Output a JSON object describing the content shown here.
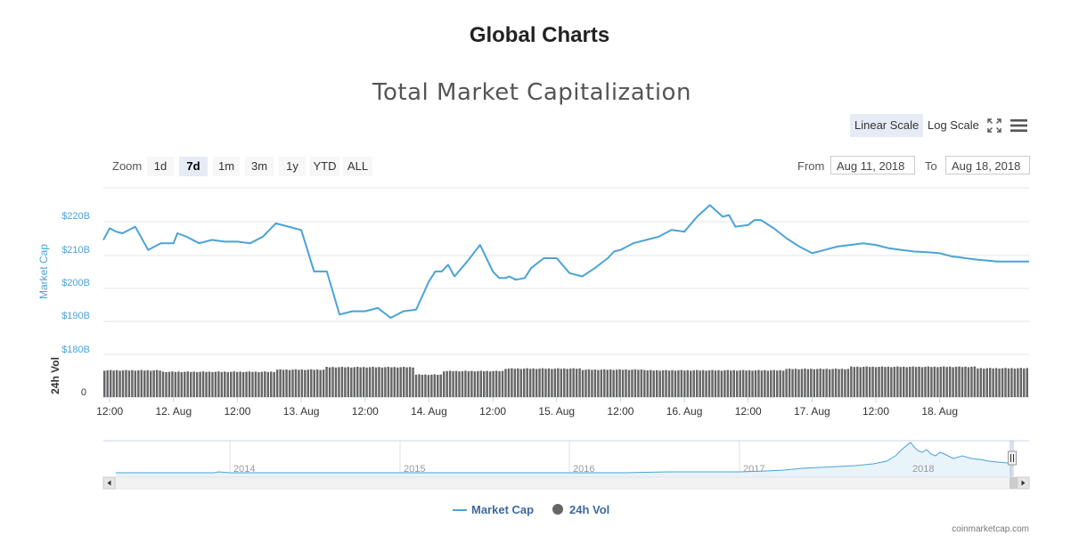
{
  "page": {
    "title": "Global Charts",
    "credit": "coinmarketcap.com"
  },
  "toolbar": {
    "linear_scale": "Linear Scale",
    "log_scale": "Log Scale",
    "zoom_label": "Zoom",
    "zoom_buttons": [
      "1d",
      "7d",
      "1m",
      "3m",
      "1y",
      "YTD",
      "ALL"
    ],
    "zoom_active": "7d",
    "from_label": "From",
    "from_value": "Aug 11, 2018",
    "to_label": "To",
    "to_value": "Aug 18, 2018"
  },
  "legend": {
    "market_cap": "Market Cap",
    "vol": "24h Vol"
  },
  "colors": {
    "market_cap": "#4ba3d6",
    "vol": "#666666",
    "navigator_fill": "#e8f3fa"
  },
  "chart_data": {
    "type": "line",
    "title": "Total Market Capitalization",
    "ylabel": "Market Cap",
    "ylim": [
      180,
      230
    ],
    "y_ticks": [
      "$220B",
      "$210B",
      "$200B",
      "$190B",
      "$180B"
    ],
    "x_tick_labels": [
      "12:00",
      "12. Aug",
      "12:00",
      "13. Aug",
      "12:00",
      "14. Aug",
      "12:00",
      "15. Aug",
      "12:00",
      "16. Aug",
      "12:00",
      "17. Aug",
      "12:00",
      "18. Aug"
    ],
    "x_range_days": [
      0.45,
      7.7
    ],
    "series": [
      {
        "name": "Market Cap",
        "unit": "B USD",
        "x_days": [
          0.45,
          0.5,
          0.55,
          0.6,
          0.7,
          0.8,
          0.9,
          1.0,
          1.03,
          1.1,
          1.2,
          1.3,
          1.4,
          1.5,
          1.6,
          1.7,
          1.8,
          1.9,
          2.0,
          2.1,
          2.2,
          2.3,
          2.4,
          2.5,
          2.6,
          2.7,
          2.8,
          2.9,
          3.0,
          3.05,
          3.1,
          3.15,
          3.2,
          3.3,
          3.4,
          3.5,
          3.55,
          3.6,
          3.63,
          3.68,
          3.75,
          3.8,
          3.9,
          4.0,
          4.1,
          4.2,
          4.3,
          4.4,
          4.45,
          4.5,
          4.6,
          4.7,
          4.8,
          4.9,
          5.0,
          5.1,
          5.2,
          5.3,
          5.35,
          5.4,
          5.5,
          5.55,
          5.6,
          5.7,
          5.8,
          5.9,
          6.0,
          6.1,
          6.2,
          6.3,
          6.4,
          6.5,
          6.6,
          6.7,
          6.8,
          6.9,
          7.0,
          7.05,
          7.1,
          7.15,
          7.2,
          7.3,
          7.4,
          7.45,
          7.5,
          7.55,
          7.6,
          7.65,
          7.7
        ],
        "values": [
          214.5,
          218,
          217,
          216.5,
          218.5,
          211.5,
          213.5,
          213.5,
          216.5,
          215.5,
          213.5,
          214.5,
          214,
          214,
          213.5,
          215.5,
          219.5,
          218.5,
          217.5,
          205,
          205,
          192,
          193,
          193,
          194,
          191,
          193,
          193.5,
          202,
          205,
          205,
          207,
          203.5,
          208,
          213,
          205,
          203,
          203,
          203.5,
          202.5,
          203,
          206,
          209,
          209,
          204.5,
          203.5,
          206,
          209,
          211,
          211.5,
          213.5,
          214.5,
          215.5,
          217.5,
          217,
          221.5,
          225,
          221.5,
          222,
          218.5,
          219,
          220.5,
          220.5,
          218,
          215,
          212.5,
          210.5,
          211.5,
          212.5,
          213,
          213.5,
          213,
          212,
          211.5,
          211,
          210.8,
          210.5,
          210,
          209.5,
          209.3,
          209,
          208.5,
          208.2,
          208,
          208,
          208,
          208,
          208,
          208
        ]
      },
      {
        "name": "24h Vol",
        "values": []
      }
    ],
    "navigator": {
      "x_tick_labels": [
        "2014",
        "2015",
        "2016",
        "2017",
        "2018"
      ]
    }
  }
}
